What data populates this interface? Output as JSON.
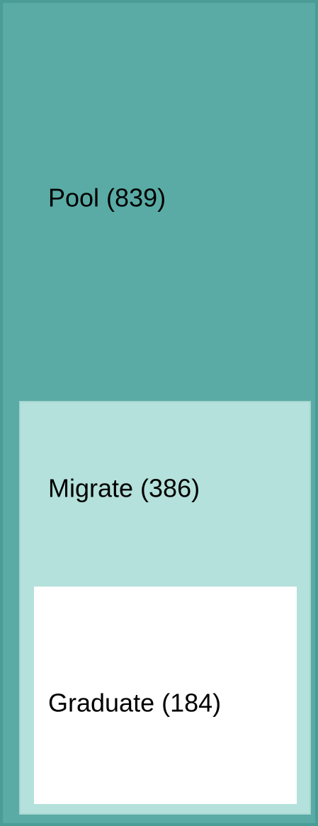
{
  "nodes": [
    {
      "label": "Pool (839)"
    },
    {
      "label": "Migrate (386)"
    },
    {
      "label": "Graduate (184)"
    }
  ]
}
